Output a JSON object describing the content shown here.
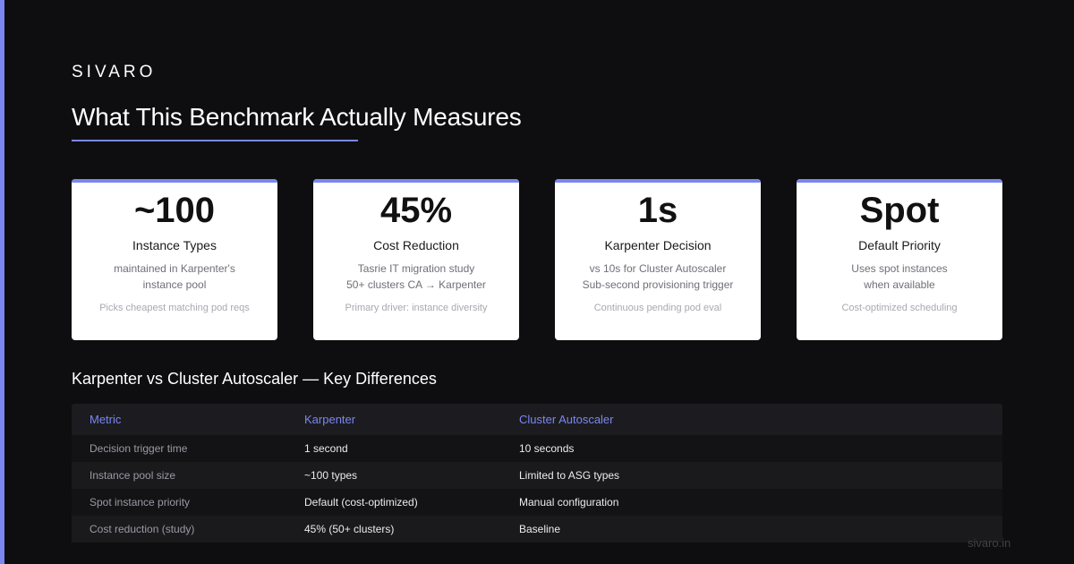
{
  "colors": {
    "background": "#0e0e10",
    "accent": "#7b86f0",
    "card_background": "#ffffff"
  },
  "brand": "SIVARO",
  "title": "What This Benchmark Actually Measures",
  "cards": [
    {
      "value": "~100",
      "label": "Instance Types",
      "desc": [
        "maintained in Karpenter's",
        "instance pool"
      ],
      "note": "Picks cheapest matching pod reqs"
    },
    {
      "value": "45%",
      "label": "Cost Reduction",
      "desc": [
        "Tasrie IT migration study",
        "50+ clusters CA → Karpenter"
      ],
      "note": "Primary driver: instance diversity"
    },
    {
      "value": "1s",
      "label": "Karpenter Decision",
      "desc": [
        "vs 10s for Cluster Autoscaler",
        "Sub-second provisioning trigger"
      ],
      "note": "Continuous pending pod eval"
    },
    {
      "value": "Spot",
      "label": "Default Priority",
      "desc": [
        "Uses spot instances",
        "when available"
      ],
      "note": "Cost-optimized scheduling"
    }
  ],
  "comparison": {
    "title": "Karpenter vs Cluster Autoscaler — Key Differences",
    "headers": [
      "Metric",
      "Karpenter",
      "Cluster Autoscaler"
    ],
    "rows": [
      [
        "Decision trigger time",
        "1 second",
        "10 seconds"
      ],
      [
        "Instance pool size",
        "~100 types",
        "Limited to ASG types"
      ],
      [
        "Spot instance priority",
        "Default (cost-optimized)",
        "Manual configuration"
      ],
      [
        "Cost reduction (study)",
        "45% (50+ clusters)",
        "Baseline"
      ]
    ]
  },
  "footer": "sivaro.in"
}
